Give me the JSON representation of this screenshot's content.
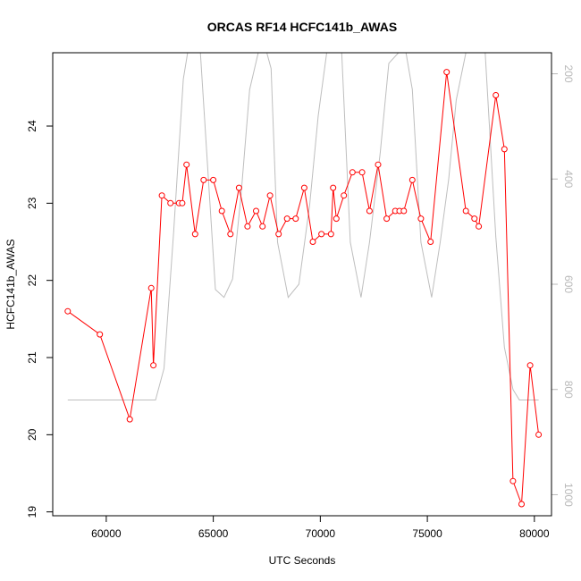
{
  "chart_data": {
    "type": "line",
    "title": "ORCAS RF14 HCFC141b_AWAS",
    "xlabel": "UTC Seconds",
    "ylabel": "HCFC141b_AWAS",
    "xlim": [
      57500,
      80800
    ],
    "ylim": [
      18.95,
      24.95
    ],
    "x_ticks": [
      60000,
      65000,
      70000,
      75000,
      80000
    ],
    "y_ticks": [
      19,
      20,
      21,
      22,
      23,
      24
    ],
    "y2lim": [
      1040,
      160
    ],
    "y2_ticks": [
      200,
      400,
      600,
      800,
      1000
    ],
    "grid": false,
    "legend": "none",
    "series": [
      {
        "color": "#ff0000",
        "marker": "open-circle",
        "x": [
          58200,
          59700,
          61100,
          62100,
          62200,
          62600,
          63000,
          63400,
          63550,
          63750,
          64150,
          64550,
          65000,
          65400,
          65800,
          66200,
          66600,
          67000,
          67300,
          67650,
          68050,
          68450,
          68850,
          69250,
          69650,
          70050,
          70500,
          70600,
          70750,
          71100,
          71500,
          71950,
          72300,
          72700,
          73100,
          73500,
          73700,
          73900,
          74300,
          74700,
          75150,
          75900,
          76800,
          77200,
          77400,
          78200,
          78600,
          79000,
          79400,
          79800,
          80200
        ],
        "y": [
          21.6,
          21.3,
          20.2,
          21.9,
          20.9,
          23.1,
          23.0,
          23.0,
          23.0,
          23.5,
          22.6,
          23.3,
          23.3,
          22.9,
          22.6,
          23.2,
          22.7,
          22.9,
          22.7,
          23.1,
          22.6,
          22.8,
          22.8,
          23.2,
          22.5,
          22.6,
          22.6,
          23.2,
          22.8,
          23.1,
          23.4,
          23.4,
          22.9,
          23.5,
          22.8,
          22.9,
          22.9,
          22.9,
          23.3,
          22.8,
          22.5,
          24.7,
          22.9,
          22.8,
          22.7,
          24.4,
          23.7,
          19.4,
          19.1,
          20.9,
          20.0
        ]
      },
      {
        "color": "#bebebe",
        "axis": "right",
        "x": [
          58200,
          59500,
          61000,
          62300,
          62700,
          63150,
          63600,
          63800,
          64000,
          64400,
          65100,
          65500,
          65900,
          66300,
          66700,
          67100,
          67500,
          67700,
          68000,
          68500,
          69000,
          69500,
          69900,
          70300,
          70750,
          71000,
          71400,
          71900,
          72300,
          72800,
          73200,
          73650,
          74000,
          74300,
          74700,
          75200,
          75600,
          76000,
          76350,
          76800,
          77300,
          77700,
          78200,
          78600,
          79000,
          79300,
          79700,
          80200
        ],
        "y": [
          820,
          820,
          820,
          820,
          760,
          500,
          210,
          70,
          40,
          120,
          610,
          625,
          590,
          430,
          230,
          90,
          70,
          190,
          520,
          625,
          600,
          450,
          280,
          150,
          50,
          130,
          520,
          625,
          520,
          350,
          180,
          60,
          80,
          230,
          520,
          625,
          520,
          400,
          250,
          120,
          40,
          70,
          510,
          720,
          800,
          820,
          820,
          820
        ]
      }
    ]
  }
}
